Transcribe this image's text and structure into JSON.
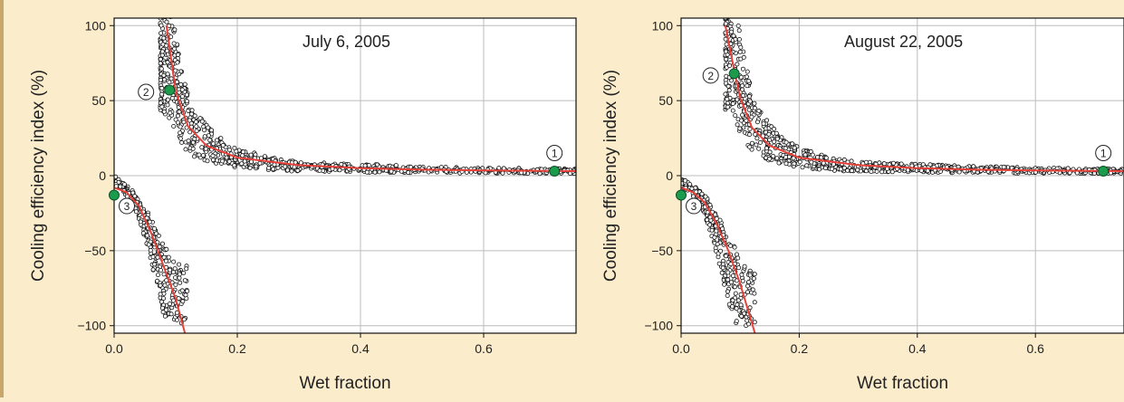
{
  "colors": {
    "background": "#fbeccb",
    "frame": "#c7a86a",
    "panel": "#ffffff",
    "grid": "#bcbcbc",
    "fit_curve": "#e8413a",
    "highlight_point": "#1c9b4d",
    "scatter_edge": "#111111"
  },
  "chart_data": [
    {
      "type": "scatter",
      "title": "",
      "annotation": "July 6, 2005",
      "xlabel": "Wet fraction",
      "ylabel": "Cooling efficiency index (%)",
      "xlim": [
        0,
        0.75
      ],
      "ylim": [
        -105,
        105
      ],
      "xticks": [
        0.0,
        0.2,
        0.4,
        0.6
      ],
      "xtick_labels": [
        "0.0",
        "0.2",
        "0.4",
        "0.6"
      ],
      "yticks": [
        -100,
        -50,
        0,
        50,
        100
      ],
      "ytick_labels": [
        "−100",
        "−50",
        "0",
        "50",
        "100"
      ],
      "grid": true,
      "series": [
        {
          "kind": "scatter-cloud-positive",
          "x_range": [
            0.075,
            0.75
          ],
          "points": [
            [
              0.08,
              95
            ],
            [
              0.09,
              80
            ],
            [
              0.1,
              60
            ],
            [
              0.11,
              45
            ],
            [
              0.12,
              35
            ],
            [
              0.13,
              28
            ],
            [
              0.15,
              22
            ],
            [
              0.18,
              15
            ],
            [
              0.2,
              12
            ],
            [
              0.25,
              8
            ],
            [
              0.3,
              6
            ],
            [
              0.4,
              5
            ],
            [
              0.5,
              4
            ],
            [
              0.6,
              3.5
            ],
            [
              0.7,
              3
            ],
            [
              0.75,
              3
            ]
          ]
        },
        {
          "kind": "scatter-cloud-negative",
          "x_range": [
            0.0,
            0.12
          ],
          "points": [
            [
              0.0,
              -3
            ],
            [
              0.01,
              -6
            ],
            [
              0.02,
              -10
            ],
            [
              0.03,
              -15
            ],
            [
              0.04,
              -22
            ],
            [
              0.05,
              -32
            ],
            [
              0.06,
              -42
            ],
            [
              0.07,
              -55
            ],
            [
              0.08,
              -68
            ],
            [
              0.09,
              -80
            ],
            [
              0.1,
              -90
            ]
          ]
        },
        {
          "kind": "fit-upper",
          "points": [
            [
              0.085,
              100
            ],
            [
              0.1,
              56
            ],
            [
              0.12,
              33
            ],
            [
              0.15,
              20
            ],
            [
              0.2,
              12
            ],
            [
              0.3,
              7
            ],
            [
              0.4,
              5
            ],
            [
              0.5,
              4
            ],
            [
              0.6,
              3.5
            ],
            [
              0.75,
              3
            ]
          ]
        },
        {
          "kind": "fit-lower",
          "points": [
            [
              0.0,
              -8
            ],
            [
              0.02,
              -11
            ],
            [
              0.04,
              -20
            ],
            [
              0.06,
              -38
            ],
            [
              0.08,
              -60
            ],
            [
              0.1,
              -82
            ],
            [
              0.115,
              -105
            ]
          ]
        }
      ],
      "highlights": [
        {
          "label": "1",
          "x": 0.715,
          "y": 3
        },
        {
          "label": "2",
          "x": 0.09,
          "y": 57
        },
        {
          "label": "3",
          "x": 0.0,
          "y": -13
        }
      ]
    },
    {
      "type": "scatter",
      "title": "",
      "annotation": "August 22, 2005",
      "xlabel": "Wet fraction",
      "ylabel": "Cooling efficiency index (%)",
      "xlim": [
        0,
        0.75
      ],
      "ylim": [
        -105,
        105
      ],
      "xticks": [
        0.0,
        0.2,
        0.4,
        0.6
      ],
      "xtick_labels": [
        "0.0",
        "0.2",
        "0.4",
        "0.6"
      ],
      "yticks": [
        -100,
        -50,
        0,
        50,
        100
      ],
      "ytick_labels": [
        "−100",
        "−50",
        "0",
        "50",
        "100"
      ],
      "grid": true,
      "series": [
        {
          "kind": "scatter-cloud-positive",
          "x_range": [
            0.075,
            0.75
          ],
          "points": [
            [
              0.08,
              95
            ],
            [
              0.09,
              80
            ],
            [
              0.1,
              62
            ],
            [
              0.11,
              48
            ],
            [
              0.12,
              38
            ],
            [
              0.13,
              30
            ],
            [
              0.15,
              22
            ],
            [
              0.18,
              15
            ],
            [
              0.2,
              12
            ],
            [
              0.25,
              8
            ],
            [
              0.3,
              6
            ],
            [
              0.4,
              5
            ],
            [
              0.5,
              4
            ],
            [
              0.6,
              3.5
            ],
            [
              0.7,
              3
            ],
            [
              0.75,
              3
            ]
          ]
        },
        {
          "kind": "scatter-cloud-negative",
          "x_range": [
            0.0,
            0.125
          ],
          "points": [
            [
              0.0,
              -4
            ],
            [
              0.01,
              -7
            ],
            [
              0.02,
              -10
            ],
            [
              0.03,
              -14
            ],
            [
              0.04,
              -20
            ],
            [
              0.05,
              -28
            ],
            [
              0.06,
              -38
            ],
            [
              0.07,
              -50
            ],
            [
              0.08,
              -62
            ],
            [
              0.09,
              -72
            ],
            [
              0.1,
              -82
            ],
            [
              0.11,
              -88
            ]
          ]
        },
        {
          "kind": "fit-upper",
          "points": [
            [
              0.075,
              100
            ],
            [
              0.09,
              70
            ],
            [
              0.1,
              52
            ],
            [
              0.12,
              32
            ],
            [
              0.15,
              20
            ],
            [
              0.2,
              12
            ],
            [
              0.3,
              7
            ],
            [
              0.4,
              5
            ],
            [
              0.5,
              4
            ],
            [
              0.6,
              3.5
            ],
            [
              0.75,
              3
            ]
          ]
        },
        {
          "kind": "fit-lower",
          "points": [
            [
              0.0,
              -8
            ],
            [
              0.02,
              -11
            ],
            [
              0.04,
              -18
            ],
            [
              0.06,
              -32
            ],
            [
              0.08,
              -50
            ],
            [
              0.1,
              -72
            ],
            [
              0.125,
              -105
            ]
          ]
        }
      ],
      "highlights": [
        {
          "label": "1",
          "x": 0.715,
          "y": 3
        },
        {
          "label": "2",
          "x": 0.09,
          "y": 68
        },
        {
          "label": "3",
          "x": 0.0,
          "y": -13
        }
      ]
    }
  ]
}
